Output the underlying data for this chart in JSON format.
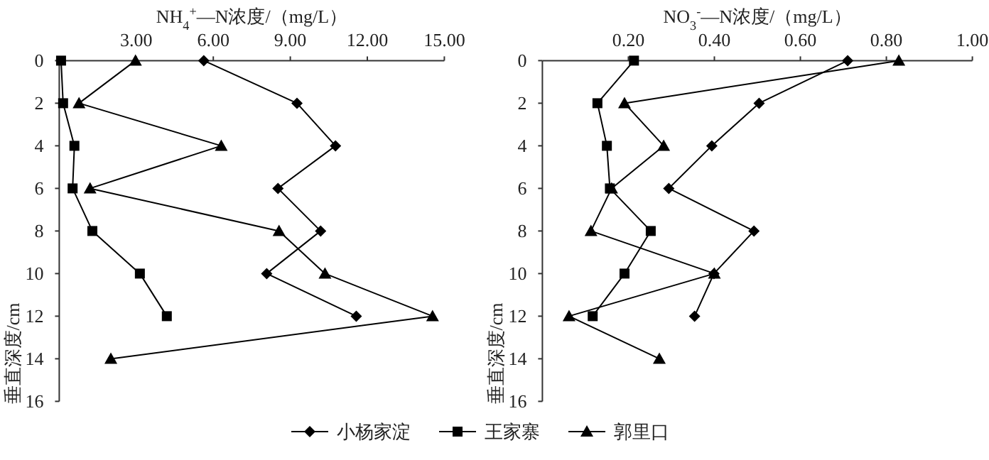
{
  "chart_data": [
    {
      "type": "line",
      "xlabel": "NH$_{4}$$^{+}$—N浓度/（mg/L）",
      "ylabel": "垂直深度/cm",
      "xlim": [
        0,
        15
      ],
      "xticks": [
        {
          "value": 3,
          "label": "3.00"
        },
        {
          "value": 6,
          "label": "6.00"
        },
        {
          "value": 9,
          "label": "9.00"
        },
        {
          "value": 12,
          "label": "12.00"
        },
        {
          "value": 15,
          "label": "15.00"
        }
      ],
      "ylim": [
        16,
        0
      ],
      "yticks": [
        0,
        2,
        4,
        6,
        8,
        10,
        12,
        14,
        16
      ],
      "legend": "bottom",
      "series": [
        {
          "name": "小杨家淀",
          "color": "#000000",
          "marker": "diamond",
          "x": [
            5.63,
            9.26,
            10.76,
            8.52,
            10.18,
            8.08,
            11.57
          ],
          "values": [
            0,
            2,
            4,
            6,
            8,
            10,
            12
          ]
        },
        {
          "name": "王家寨",
          "color": "#000000",
          "marker": "square",
          "x": [
            0.07,
            0.15,
            0.59,
            0.52,
            1.29,
            3.14,
            4.19
          ],
          "values": [
            0,
            2,
            4,
            6,
            8,
            10,
            12
          ]
        },
        {
          "name": "郭里口",
          "color": "#000000",
          "marker": "triangle",
          "x": [
            2.97,
            0.77,
            6.31,
            1.2,
            8.56,
            10.35,
            14.54,
            2.01
          ],
          "values": [
            0,
            2,
            4,
            6,
            8,
            10,
            12,
            14
          ]
        }
      ]
    },
    {
      "type": "line",
      "xlabel": "NO$_{3}$$^{-}$—N浓度/（mg/L）",
      "ylabel": "垂直深度/cm",
      "xlim": [
        0,
        1
      ],
      "xticks": [
        {
          "value": 0.2,
          "label": "0.20"
        },
        {
          "value": 0.4,
          "label": "0.40"
        },
        {
          "value": 0.6,
          "label": "0.60"
        },
        {
          "value": 0.8,
          "label": "0.80"
        },
        {
          "value": 1,
          "label": "1.00"
        }
      ],
      "ylim": [
        16,
        0
      ],
      "yticks": [
        0,
        2,
        4,
        6,
        8,
        10,
        12,
        14,
        16
      ],
      "series": [
        {
          "color": "#000000",
          "marker": "diamond",
          "x": [
            0.71,
            0.504,
            0.394,
            0.294,
            0.492,
            0.399,
            0.354
          ],
          "values": [
            0,
            2,
            4,
            6,
            8,
            10,
            12
          ]
        },
        {
          "color": "#000000",
          "marker": "square",
          "x": [
            0.213,
            0.128,
            0.15,
            0.157,
            0.252,
            0.191,
            0.117
          ],
          "values": [
            0,
            2,
            4,
            6,
            8,
            10,
            12
          ]
        },
        {
          "color": "#000000",
          "marker": "triangle",
          "x": [
            0.829,
            0.191,
            0.282,
            0.161,
            0.113,
            0.4,
            0.062,
            0.272
          ],
          "values": [
            0,
            2,
            4,
            6,
            8,
            10,
            12,
            14
          ]
        }
      ]
    }
  ]
}
